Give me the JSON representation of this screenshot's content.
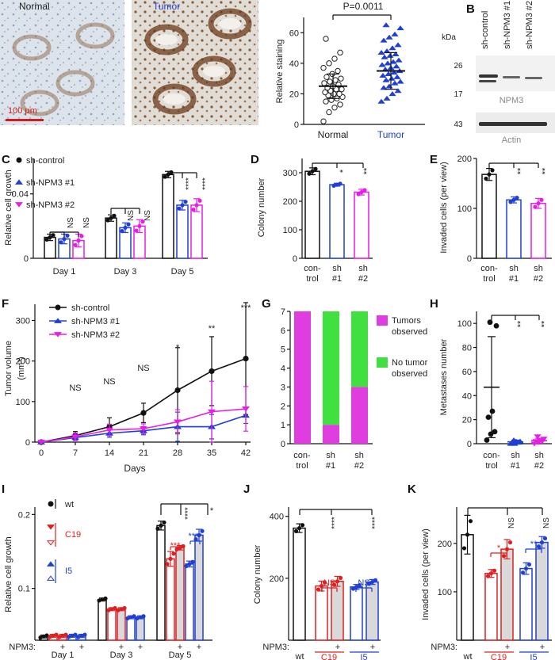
{
  "colors": {
    "control": "#111111",
    "kd1": "#1f3fd6",
    "kd2": "#e61ee6",
    "c19": "#e02020",
    "i5": "#1f3fd6",
    "tumor_text": "#1f3fd6",
    "tumors_observed": "#e03de0",
    "no_tumor": "#3fe03f",
    "fill_grey": "#d9d9d9"
  },
  "panels": {
    "A": {
      "label": "A",
      "normal_label": "Normal",
      "tumor_label": "Tumor",
      "scale_bar": "100 μm",
      "p_value": "P=0.0011",
      "ylabel": "Relative staining",
      "yticks": [
        "0",
        "20",
        "40",
        "60"
      ],
      "categories": [
        "Normal",
        "Tumor"
      ]
    },
    "B": {
      "label": "B",
      "kda": "kDa",
      "lanes": [
        "sh-control",
        "sh-NPM3 #1",
        "sh-NPM3 #2"
      ],
      "mw": [
        "26",
        "17",
        "43"
      ],
      "band1": "NPM3",
      "band2": "Actin"
    },
    "C": {
      "label": "C",
      "ylabel": "Relative cell growth",
      "yticks": [
        "0",
        "0.04"
      ],
      "legend": [
        "sh-control",
        "sh-NPM3 #1",
        "sh-NPM3 #2"
      ],
      "days": [
        "Day 1",
        "Day 3",
        "Day 5"
      ],
      "sig": [
        "NS",
        "NS",
        "NS",
        "NS",
        "****",
        "****"
      ]
    },
    "D": {
      "label": "D",
      "ylabel": "Colony number",
      "yticks": [
        "0",
        "100",
        "200",
        "300"
      ],
      "cats": [
        "con-",
        "trol",
        "sh",
        "#1",
        "sh",
        "#2"
      ],
      "sig": [
        "*",
        "**"
      ]
    },
    "E": {
      "label": "E",
      "ylabel": "Invaded cells (per view)",
      "yticks": [
        "0",
        "100",
        "200"
      ],
      "cats": [
        "con-",
        "trol",
        "sh",
        "#1",
        "sh",
        "#2"
      ],
      "sig": [
        "**",
        "**"
      ]
    },
    "F": {
      "label": "F",
      "ylabel": "Tumor volume",
      "yunit": "(mm³)",
      "xlabel": "Days",
      "yticks": [
        "0",
        "100",
        "200",
        "300"
      ],
      "xticks": [
        "0",
        "7",
        "14",
        "21",
        "28",
        "35",
        "42"
      ],
      "legend": [
        "sh-control",
        "sh-NPM3 #1",
        "sh-NPM3 #2"
      ],
      "sig": [
        "NS",
        "NS",
        "NS",
        "*",
        "**",
        "***"
      ]
    },
    "G": {
      "label": "G",
      "yticks": [
        "0",
        "1",
        "2",
        "3",
        "4",
        "5",
        "6",
        "7"
      ],
      "cats": [
        "con-",
        "trol",
        "sh",
        "#1",
        "sh",
        "#2"
      ],
      "legend_a1": "Tumors",
      "legend_a2": "observed",
      "legend_b1": "No tumor",
      "legend_b2": "observed"
    },
    "H": {
      "label": "H",
      "ylabel": "Metastases number",
      "yticks": [
        "0",
        "20",
        "40",
        "60",
        "80",
        "100"
      ],
      "cats": [
        "con-",
        "trol",
        "sh",
        "#1",
        "sh",
        "#2"
      ],
      "sig": [
        "**",
        "**"
      ]
    },
    "I": {
      "label": "I",
      "ylabel": "Relative cell growth",
      "yticks": [
        "0.1",
        "0.2"
      ],
      "legend": [
        "wt",
        "C19",
        "I5"
      ],
      "days": [
        "Day 1",
        "Day 3",
        "Day 5"
      ],
      "npm3": "NPM3:",
      "plus": "+",
      "sig": [
        "****",
        "*",
        "***",
        "****"
      ]
    },
    "J": {
      "label": "J",
      "ylabel": "Colony number",
      "yticks": [
        "200",
        "400"
      ],
      "cats": [
        "wt",
        "C19",
        "I5"
      ],
      "npm3": "NPM3:",
      "plus": "+",
      "sig": [
        "****",
        "****",
        "NS",
        "NS"
      ]
    },
    "K": {
      "label": "K",
      "ylabel": "Invaded cells (per view)",
      "yticks": [
        "100",
        "200"
      ],
      "cats": [
        "wt",
        "C19",
        "I5"
      ],
      "npm3": "NPM3:",
      "plus": "+",
      "sig": [
        "NS",
        "NS",
        "*",
        "**"
      ]
    }
  },
  "chart_data": [
    {
      "panel": "A",
      "type": "scatter",
      "categories": [
        "Normal",
        "Tumor"
      ],
      "ylim": [
        0,
        70
      ],
      "series": [
        {
          "name": "Normal",
          "values": [
            2,
            8,
            11,
            13,
            15,
            16,
            17,
            18,
            19,
            20,
            20,
            21,
            22,
            23,
            23,
            24,
            25,
            26,
            27,
            28,
            29,
            30,
            31,
            33,
            35,
            37,
            40,
            43,
            47,
            56
          ],
          "mean": 25,
          "sd": 8
        },
        {
          "name": "Tumor",
          "values": [
            15,
            17,
            20,
            22,
            24,
            25,
            27,
            28,
            29,
            30,
            31,
            32,
            33,
            34,
            35,
            36,
            37,
            38,
            39,
            40,
            41,
            42,
            44,
            45,
            46,
            47,
            48,
            50,
            52,
            55,
            57,
            59,
            63,
            65
          ],
          "mean": 35,
          "sd": 12
        }
      ]
    },
    {
      "panel": "C",
      "type": "bar",
      "categories": [
        "Day 1",
        "Day 3",
        "Day 5"
      ],
      "ylim": [
        0,
        0.06
      ],
      "series": [
        {
          "name": "sh-control",
          "values": [
            0.013,
            0.025,
            0.052
          ]
        },
        {
          "name": "sh-NPM3 #1",
          "values": [
            0.012,
            0.019,
            0.033
          ]
        },
        {
          "name": "sh-NPM3 #2",
          "values": [
            0.011,
            0.02,
            0.033
          ]
        }
      ]
    },
    {
      "panel": "D",
      "type": "bar",
      "categories": [
        "control",
        "sh #1",
        "sh #2"
      ],
      "values": [
        305,
        258,
        232
      ],
      "ylim": [
        0,
        350
      ]
    },
    {
      "panel": "E",
      "type": "bar",
      "categories": [
        "control",
        "sh #1",
        "sh #2"
      ],
      "values": [
        168,
        117,
        110
      ],
      "ylim": [
        0,
        200
      ]
    },
    {
      "panel": "F",
      "type": "line",
      "x": [
        0,
        7,
        14,
        21,
        28,
        35,
        42
      ],
      "ylim": [
        0,
        340
      ],
      "series": [
        {
          "name": "sh-control",
          "values": [
            0,
            16,
            38,
            72,
            128,
            175,
            206
          ],
          "err": [
            4,
            10,
            22,
            24,
            105,
            85,
            138
          ]
        },
        {
          "name": "sh-NPM3 #1",
          "values": [
            0,
            11,
            22,
            28,
            38,
            38,
            66
          ],
          "err": [
            3,
            7,
            10,
            10,
            36,
            30,
            20
          ]
        },
        {
          "name": "sh-NPM3 #2",
          "values": [
            0,
            13,
            30,
            33,
            50,
            75,
            82
          ],
          "err": [
            4,
            9,
            14,
            12,
            30,
            75,
            55
          ]
        }
      ]
    },
    {
      "panel": "G",
      "type": "bar",
      "categories": [
        "control",
        "sh #1",
        "sh #2"
      ],
      "ylim": [
        0,
        7
      ],
      "series": [
        {
          "name": "Tumors observed",
          "values": [
            7,
            1,
            3
          ]
        },
        {
          "name": "No tumor observed",
          "values": [
            0,
            6,
            4
          ]
        }
      ]
    },
    {
      "panel": "H",
      "type": "scatter",
      "categories": [
        "control",
        "sh #1",
        "sh #2"
      ],
      "ylim": [
        0,
        110
      ],
      "series": [
        {
          "name": "control",
          "values": [
            3,
            8,
            10,
            22,
            27,
            98,
            101
          ],
          "mean": 47,
          "sd": 42
        },
        {
          "name": "sh #1",
          "values": [
            0,
            0,
            1,
            1,
            2,
            2,
            3
          ],
          "mean": 1.5,
          "sd": 1.5
        },
        {
          "name": "sh #2",
          "values": [
            0,
            1,
            2,
            2,
            3,
            4,
            6
          ],
          "mean": 2.5,
          "sd": 2
        }
      ]
    },
    {
      "panel": "I",
      "type": "bar",
      "categories": [
        "Day 1",
        "Day 3",
        "Day 5"
      ],
      "ylim": [
        0.03,
        0.21
      ],
      "series": [
        {
          "name": "wt",
          "values": [
            0.035,
            0.085,
            0.185
          ]
        },
        {
          "name": "C19",
          "values": [
            0.036,
            0.072,
            0.14
          ]
        },
        {
          "name": "C19 + NPM3",
          "values": [
            0.036,
            0.072,
            0.155
          ]
        },
        {
          "name": "I5",
          "values": [
            0.036,
            0.061,
            0.133
          ]
        },
        {
          "name": "I5 + NPM3",
          "values": [
            0.036,
            0.061,
            0.172
          ]
        }
      ]
    },
    {
      "panel": "J",
      "type": "bar",
      "categories": [
        "wt",
        "C19",
        "C19 + NPM3",
        "I5",
        "I5 + NPM3"
      ],
      "values": [
        362,
        175,
        190,
        172,
        188
      ],
      "ylim": [
        0,
        420
      ]
    },
    {
      "panel": "K",
      "type": "bar",
      "categories": [
        "wt",
        "C19",
        "C19 + NPM3",
        "I5",
        "I5 + NPM3"
      ],
      "values": [
        218,
        138,
        188,
        148,
        202
      ],
      "ylim": [
        0,
        260
      ]
    }
  ]
}
